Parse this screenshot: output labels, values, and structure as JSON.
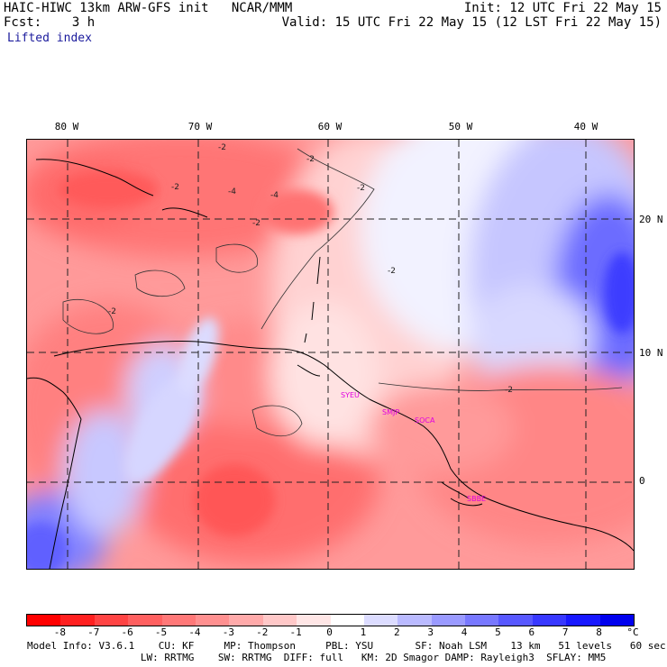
{
  "header": {
    "title": "HAIC-HIWC 13km ARW-GFS init   NCAR/MMM",
    "fcst": "Fcst:    3 h",
    "field": "Lifted index",
    "init": "Init: 12 UTC Fri 22 May 15",
    "valid": "Valid: 15 UTC Fri 22 May 15 (12 LST Fri 22 May 15)"
  },
  "axes": {
    "lon_labels": [
      "80 W",
      "70 W",
      "60 W",
      "50 W",
      "40 W"
    ],
    "lat_labels": [
      "20 N",
      "10 N",
      "0"
    ]
  },
  "stations": [
    "SYEU",
    "SMJP",
    "SOCA",
    "SBBE"
  ],
  "contour_labels": [
    "-2",
    "-2",
    "-2",
    "-4",
    "-4",
    "-2",
    "-2",
    "-2",
    "-2",
    "-2"
  ],
  "colorbar": {
    "ticks": [
      "-8",
      "-7",
      "-6",
      "-5",
      "-4",
      "-3",
      "-2",
      "-1",
      "0",
      "1",
      "2",
      "3",
      "4",
      "5",
      "6",
      "7",
      "8"
    ],
    "unit": "°C",
    "colors": [
      "#ff0000",
      "#ff2020",
      "#ff4444",
      "#ff6060",
      "#ff7878",
      "#ff9090",
      "#ffaaaa",
      "#ffc8c8",
      "#ffe6e6",
      "#ffffff",
      "#dcdcff",
      "#babaff",
      "#9a9aff",
      "#7878ff",
      "#5858ff",
      "#3838ff",
      "#1818ff",
      "#0000ee"
    ]
  },
  "footer": {
    "line1": "Model Info: V3.6.1    CU: KF     MP: Thompson     PBL: YSU       SF: Noah LSM    13 km   51 levels   60 sec",
    "line2": "                   LW: RRTMG    SW: RRTMG  DIFF: full   KM: 2D Smagor DAMP: Rayleigh3  SFLAY: MM5"
  }
}
